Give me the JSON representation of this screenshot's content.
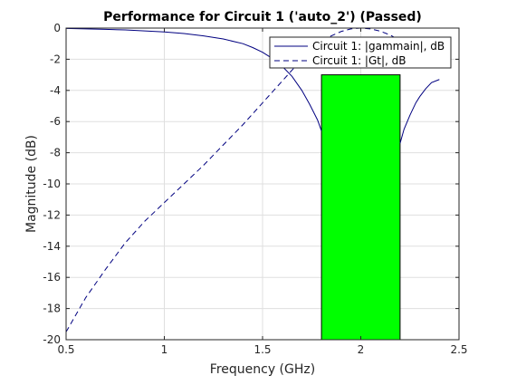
{
  "chart_data": {
    "type": "line",
    "title": "Performance for Circuit 1 ('auto_2')  (Passed)",
    "xlabel": "Frequency (GHz)",
    "ylabel": "Magnitude (dB)",
    "xlim": [
      0.5,
      2.5
    ],
    "ylim": [
      -20,
      0
    ],
    "xticks": [
      0.5,
      1,
      1.5,
      2,
      2.5
    ],
    "xtick_labels": [
      "0.5",
      "1",
      "1.5",
      "2",
      "2.5"
    ],
    "yticks": [
      0,
      -2,
      -4,
      -6,
      -8,
      -10,
      -12,
      -14,
      -16,
      -18,
      -20
    ],
    "ytick_labels": [
      "0",
      "-2",
      "-4",
      "-6",
      "-8",
      "-10",
      "-12",
      "-14",
      "-16",
      "-18",
      "-20"
    ],
    "grid": true,
    "legend_position": "top-right",
    "series": [
      {
        "name": "Circuit 1: |gammain|, dB",
        "style": "solid",
        "color": "#000080",
        "x": [
          0.5,
          0.6,
          0.7,
          0.8,
          0.9,
          1.0,
          1.1,
          1.2,
          1.3,
          1.4,
          1.45,
          1.5,
          1.55,
          1.6,
          1.65,
          1.7,
          1.74,
          1.78,
          1.8
        ],
        "y": [
          -0.02,
          -0.05,
          -0.08,
          -0.12,
          -0.18,
          -0.25,
          -0.35,
          -0.5,
          -0.7,
          -1.0,
          -1.25,
          -1.55,
          -1.95,
          -2.45,
          -3.1,
          -4.0,
          -4.9,
          -5.9,
          -6.6
        ]
      },
      {
        "name": "",
        "style": "solid",
        "color": "#000080",
        "x": [
          2.2,
          2.22,
          2.25,
          2.28,
          2.3,
          2.33,
          2.36,
          2.4
        ],
        "y": [
          -7.4,
          -6.5,
          -5.6,
          -4.8,
          -4.4,
          -3.9,
          -3.5,
          -3.3
        ]
      },
      {
        "name": "Circuit 1: |Gt|, dB",
        "style": "dashed",
        "color": "#000080",
        "x": [
          0.5,
          0.6,
          0.7,
          0.8,
          0.9,
          1.0,
          1.1,
          1.2,
          1.3,
          1.4,
          1.5,
          1.6,
          1.7,
          1.8,
          1.85,
          1.9,
          1.95,
          2.0,
          2.05,
          2.1,
          2.15,
          2.2
        ],
        "y": [
          -19.5,
          -17.3,
          -15.5,
          -13.8,
          -12.4,
          -11.2,
          -10.0,
          -8.8,
          -7.5,
          -6.2,
          -4.8,
          -3.4,
          -2.0,
          -0.9,
          -0.5,
          -0.22,
          -0.05,
          0.0,
          -0.05,
          -0.2,
          -0.45,
          -0.8
        ]
      }
    ],
    "spec_region": {
      "color": "#00ff00",
      "x": [
        1.8,
        2.2
      ],
      "y": [
        -20,
        -3
      ]
    }
  }
}
